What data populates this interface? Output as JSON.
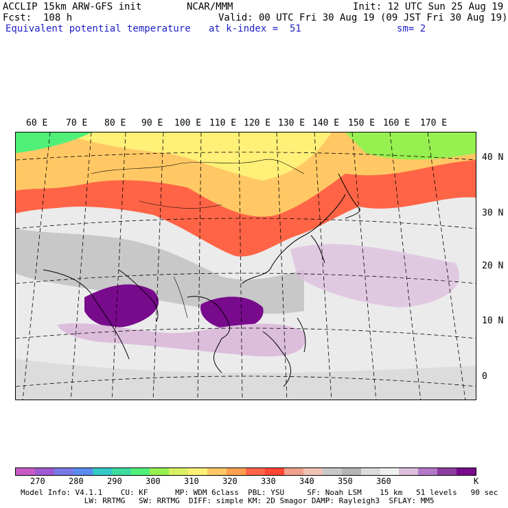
{
  "header": {
    "model": "ACCLIP 15km ARW-GFS init",
    "center": "NCAR/MMM",
    "init": "Init: 12 UTC Sun 25 Aug 19",
    "fcst": "Fcst:  108 h",
    "valid": "Valid: 00 UTC Fri 30 Aug 19 (09 JST Fri 30 Aug 19)",
    "field": "Equivalent potential temperature",
    "level": "at k-index =  51",
    "smooth": "sm= 2"
  },
  "axes": {
    "longitudes": [
      "60 E",
      "70 E",
      "80 E",
      "90 E",
      "100 E",
      "110 E",
      "120 E",
      "130 E",
      "140 E",
      "150 E",
      "160 E",
      "170 E"
    ],
    "latitudes": [
      "40 N",
      "30 N",
      "20 N",
      "10 N",
      "0"
    ]
  },
  "colorbar": {
    "colors": [
      "#c85ac8",
      "#a05ad2",
      "#7878e6",
      "#5a8cf0",
      "#32c8c8",
      "#3cdca0",
      "#50f078",
      "#96f050",
      "#dcf064",
      "#fff078",
      "#ffc864",
      "#ffa050",
      "#ff6446",
      "#ff4632",
      "#f0a08c",
      "#f0c3b4",
      "#c8c8c8",
      "#b4b4b4",
      "#dcdcdc",
      "#f0f0f0",
      "#dcbedc",
      "#b478c8",
      "#8c3ca0",
      "#780a8c"
    ],
    "labels": [
      "270",
      "280",
      "290",
      "300",
      "310",
      "320",
      "330",
      "340",
      "350",
      "360"
    ],
    "unit": "K"
  },
  "footer": {
    "line1": "Model Info: V4.1.1    CU: KF      MP: WDM 6class  PBL: YSU     SF: Noah LSM    15 km   51 levels   90 sec",
    "line2": "              LW: RRTMG   SW: RRTMG  DIFF: simple KM: 2D Smagor DAMP: Rayleigh3  SFLAY: MM5"
  }
}
